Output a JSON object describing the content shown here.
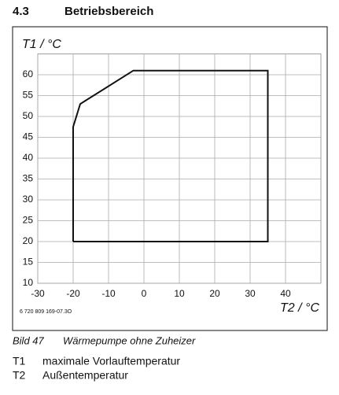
{
  "header": {
    "number": "4.3",
    "title": "Betriebsbereich"
  },
  "chart_data": {
    "type": "line",
    "y_label": "T1 / °C",
    "x_label": "T2 / °C",
    "x": [
      -20,
      -20,
      -18,
      -3,
      35,
      35,
      -20
    ],
    "values": [
      20,
      47.5,
      53,
      61,
      61,
      20,
      20
    ],
    "color": "#111111",
    "xlim": [
      -30,
      50
    ],
    "ylim": [
      10,
      65
    ],
    "xticks": [
      -30,
      -20,
      -10,
      0,
      10,
      20,
      30,
      40
    ],
    "yticks": [
      10,
      15,
      20,
      25,
      30,
      35,
      40,
      45,
      50,
      55,
      60
    ],
    "grid": true,
    "source_code": "6 720 809 169-07.3O"
  },
  "caption": {
    "label": "Bild 47",
    "text": "Wärmepumpe ohne Zuheizer"
  },
  "legend": [
    {
      "symbol": "T1",
      "text": "maximale Vorlauftemperatur"
    },
    {
      "symbol": "T2",
      "text": "Außentemperatur"
    }
  ]
}
